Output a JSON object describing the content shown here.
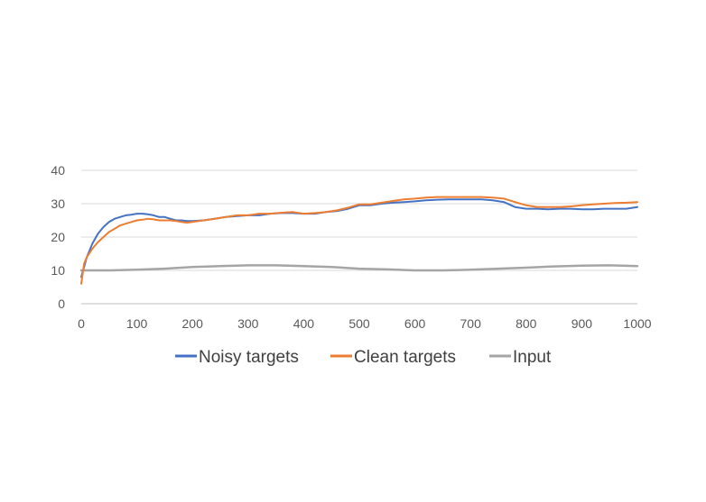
{
  "chart_data": {
    "type": "line",
    "title": "",
    "xlabel": "",
    "ylabel": "",
    "xlim": [
      0,
      1000
    ],
    "ylim": [
      0,
      40
    ],
    "x_ticks": [
      0,
      100,
      200,
      300,
      400,
      500,
      600,
      700,
      800,
      900,
      1000
    ],
    "y_ticks": [
      0,
      10,
      20,
      30,
      40
    ],
    "grid": "horizontal",
    "legend_position": "bottom",
    "series": [
      {
        "name": "Noisy targets",
        "color": "#4472C4",
        "x": [
          0,
          5,
          10,
          20,
          30,
          40,
          50,
          60,
          70,
          80,
          90,
          100,
          110,
          120,
          130,
          140,
          150,
          160,
          170,
          180,
          190,
          200,
          220,
          240,
          260,
          280,
          300,
          320,
          340,
          360,
          380,
          400,
          420,
          440,
          460,
          480,
          500,
          520,
          540,
          560,
          580,
          600,
          620,
          640,
          660,
          680,
          700,
          720,
          740,
          760,
          780,
          800,
          820,
          840,
          860,
          880,
          900,
          920,
          940,
          960,
          980,
          1000
        ],
        "values": [
          8,
          11,
          14,
          18,
          21,
          23,
          24.5,
          25.5,
          26,
          26.5,
          26.7,
          27,
          27,
          26.8,
          26.5,
          26,
          26,
          25.5,
          25,
          25,
          24.8,
          24.8,
          25,
          25.5,
          26,
          26.3,
          26.5,
          26.5,
          27,
          27.2,
          27.2,
          27,
          27,
          27.5,
          27.8,
          28.5,
          29.5,
          29.5,
          30,
          30.3,
          30.5,
          30.7,
          31,
          31.2,
          31.3,
          31.3,
          31.3,
          31.3,
          31,
          30.5,
          29,
          28.5,
          28.5,
          28.3,
          28.5,
          28.5,
          28.3,
          28.3,
          28.5,
          28.5,
          28.5,
          29
        ]
      },
      {
        "name": "Clean targets",
        "color": "#ED7D31",
        "x": [
          0,
          5,
          10,
          20,
          30,
          40,
          50,
          60,
          70,
          80,
          90,
          100,
          110,
          120,
          130,
          140,
          150,
          160,
          170,
          180,
          190,
          200,
          220,
          240,
          260,
          280,
          300,
          320,
          340,
          360,
          380,
          400,
          420,
          440,
          460,
          480,
          500,
          520,
          540,
          560,
          580,
          600,
          620,
          640,
          660,
          680,
          700,
          720,
          740,
          760,
          780,
          800,
          820,
          840,
          860,
          880,
          900,
          920,
          940,
          960,
          980,
          1000
        ],
        "values": [
          6,
          12,
          14,
          16.5,
          18.5,
          20,
          21.5,
          22.5,
          23.5,
          24,
          24.5,
          25,
          25.2,
          25.5,
          25.3,
          25,
          25,
          25,
          24.8,
          24.5,
          24.3,
          24.5,
          25,
          25.5,
          26,
          26.5,
          26.5,
          27,
          27,
          27.3,
          27.5,
          27,
          27.2,
          27.5,
          28,
          28.8,
          29.8,
          29.8,
          30.3,
          30.8,
          31.3,
          31.5,
          31.8,
          32,
          32,
          32,
          32,
          32,
          31.8,
          31.5,
          30.5,
          29.5,
          29,
          29,
          29,
          29.2,
          29.5,
          29.8,
          30,
          30.2,
          30.3,
          30.5
        ]
      },
      {
        "name": "Input",
        "color": "#A5A5A5",
        "x": [
          0,
          50,
          100,
          150,
          200,
          250,
          300,
          350,
          400,
          450,
          500,
          550,
          600,
          650,
          700,
          750,
          800,
          850,
          900,
          950,
          1000
        ],
        "values": [
          10,
          10,
          10.2,
          10.5,
          11,
          11.3,
          11.5,
          11.5,
          11.3,
          11,
          10.5,
          10.3,
          10,
          10,
          10.2,
          10.5,
          10.8,
          11.2,
          11.4,
          11.5,
          11.3
        ]
      }
    ]
  }
}
